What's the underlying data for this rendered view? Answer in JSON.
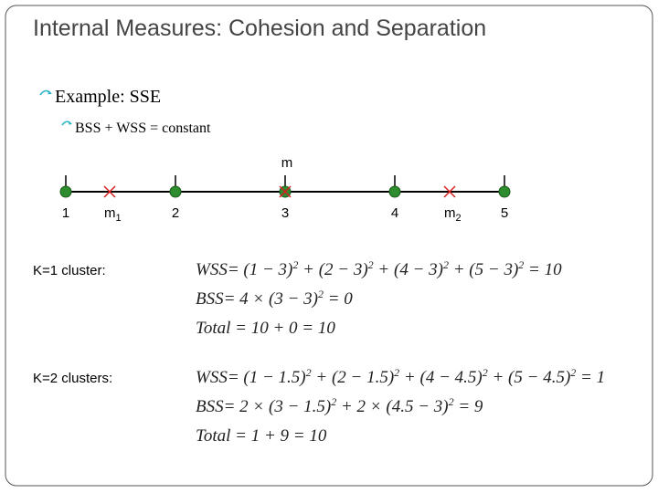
{
  "header": {
    "title": "Internal Measures: Cohesion and Separation"
  },
  "bullets": [
    {
      "text": "Example: SSE",
      "children": [
        "BSS + WSS = constant"
      ]
    }
  ],
  "number_line": {
    "overall_mean": "m",
    "labels": [
      "1",
      {
        "base": "m",
        "sub": "1"
      },
      "2",
      "3",
      "4",
      {
        "base": "m",
        "sub": "2"
      },
      "5"
    ]
  },
  "cases": [
    {
      "label": "K=1 cluster:",
      "equations": [
        [
          {
            "text": "WSS= (1 − 3)",
            "sup": "2"
          },
          {
            "text": " + (2 − 3)",
            "sup": "2"
          },
          {
            "text": " + (4 − 3)",
            "sup": "2"
          },
          {
            "text": " + (5 − 3)",
            "sup": "2"
          },
          {
            "text": " = 10"
          }
        ],
        [
          {
            "text": "BSS= 4 × (3 − 3)",
            "sup": "2"
          },
          {
            "text": " = 0"
          }
        ],
        [
          {
            "text": "Total = 10 + 0 = 10"
          }
        ]
      ]
    },
    {
      "label": "K=2 clusters:",
      "equations": [
        [
          {
            "text": "WSS= (1 − 1.5)",
            "sup": "2"
          },
          {
            "text": " + (2 − 1.5)",
            "sup": "2"
          },
          {
            "text": " + (4 − 4.5)",
            "sup": "2"
          },
          {
            "text": " + (5 − 4.5)",
            "sup": "2"
          },
          {
            "text": " = 1"
          }
        ],
        [
          {
            "text": "BSS= 2 × (3 − 1.5)",
            "sup": "2"
          },
          {
            "text": " + 2 × (4.5 − 3)",
            "sup": "2"
          },
          {
            "text": " = 9"
          }
        ],
        [
          {
            "text": "Total = 1 + 9 = 10"
          }
        ]
      ]
    }
  ]
}
